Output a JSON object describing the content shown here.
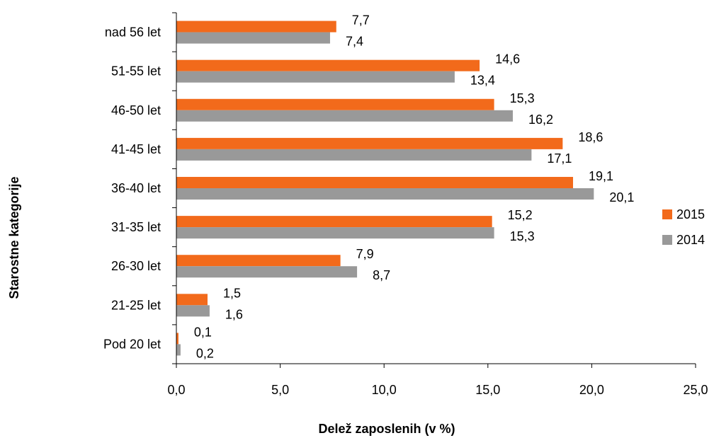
{
  "colors": {
    "series_2015": "#f26a1b",
    "series_2014": "#999999",
    "axis": "#000000"
  },
  "chart_data": {
    "type": "bar",
    "orientation": "horizontal",
    "title": "",
    "xlabel": "Delež zaposlenih (v %)",
    "ylabel": "Starostne kategorije",
    "xlim": [
      0,
      25
    ],
    "xticks": [
      "0,0",
      "5,0",
      "10,0",
      "15,0",
      "20,0",
      "25,0"
    ],
    "categories": [
      "nad 56 let",
      "51-55 let",
      "46-50 let",
      "41-45 let",
      "36-40 let",
      "31-35 let",
      "26-30 let",
      "21-25 let",
      "Pod 20 let"
    ],
    "series": [
      {
        "name": "2015",
        "values": [
          7.7,
          14.6,
          15.3,
          18.6,
          19.1,
          15.2,
          7.9,
          1.5,
          0.1
        ],
        "labels": [
          "7,7",
          "14,6",
          "15,3",
          "18,6",
          "19,1",
          "15,2",
          "7,9",
          "1,5",
          "0,1"
        ]
      },
      {
        "name": "2014",
        "values": [
          7.4,
          13.4,
          16.2,
          17.1,
          20.1,
          15.3,
          8.7,
          1.6,
          0.2
        ],
        "labels": [
          "7,4",
          "13,4",
          "16,2",
          "17,1",
          "20,1",
          "15,3",
          "8,7",
          "1,6",
          "0,2"
        ]
      }
    ],
    "legend": "right",
    "grid": false
  }
}
